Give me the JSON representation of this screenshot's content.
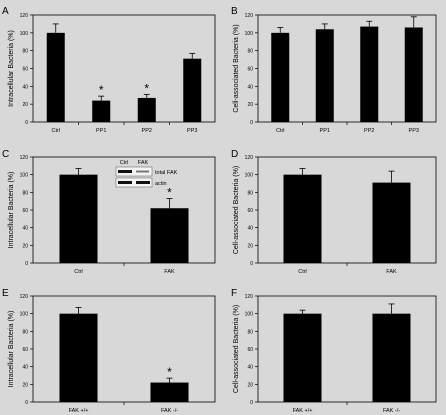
{
  "figure": {
    "background": "#d8d8d8",
    "bar_color": "#000000"
  },
  "chart_data": [
    {
      "type": "bar",
      "panel": "A",
      "categories": [
        "Ctrl",
        "PP1",
        "PP2",
        "PP3"
      ],
      "values": [
        100,
        24,
        27,
        71
      ],
      "errors": [
        10,
        5,
        4,
        6
      ],
      "significant": [
        false,
        true,
        true,
        false
      ],
      "ylabel": "Intracellular Bacteria (%)",
      "ylim": [
        0,
        120
      ],
      "yticks": [
        0,
        20,
        40,
        60,
        80,
        100,
        120
      ]
    },
    {
      "type": "bar",
      "panel": "B",
      "categories": [
        "Ctrl",
        "PP1",
        "PP2",
        "PP3"
      ],
      "values": [
        100,
        104,
        107,
        106
      ],
      "errors": [
        6,
        6,
        6,
        12
      ],
      "significant": [
        false,
        false,
        false,
        false
      ],
      "ylabel": "Cell-associated Bacteria (%)",
      "ylim": [
        0,
        120
      ],
      "yticks": [
        0,
        20,
        40,
        60,
        80,
        100,
        120
      ]
    },
    {
      "type": "bar",
      "panel": "C",
      "categories": [
        "Ctrl",
        "FAK"
      ],
      "values": [
        100,
        62
      ],
      "errors": [
        7,
        11
      ],
      "significant": [
        false,
        true
      ],
      "ylabel": "Intracellular Bacteria (%)",
      "ylim": [
        0,
        120
      ],
      "yticks": [
        0,
        20,
        40,
        60,
        80,
        100,
        120
      ],
      "inset": {
        "lanes": [
          "Ctrl",
          "FAK"
        ],
        "rows": [
          "total FAK",
          "actin"
        ]
      }
    },
    {
      "type": "bar",
      "panel": "D",
      "categories": [
        "Ctrl",
        "FAK"
      ],
      "values": [
        100,
        91
      ],
      "errors": [
        7,
        13
      ],
      "significant": [
        false,
        false
      ],
      "ylabel": "Cell-associated Bacteria (%)",
      "ylim": [
        0,
        120
      ],
      "yticks": [
        0,
        20,
        40,
        60,
        80,
        100,
        120
      ]
    },
    {
      "type": "bar",
      "panel": "E",
      "categories": [
        "FAK +/+",
        "FAK -/-"
      ],
      "values": [
        100,
        22
      ],
      "errors": [
        7,
        5
      ],
      "significant": [
        false,
        true
      ],
      "ylabel": "Intracellular Bacteria (%)",
      "ylim": [
        0,
        120
      ],
      "yticks": [
        0,
        20,
        40,
        60,
        80,
        100,
        120
      ]
    },
    {
      "type": "bar",
      "panel": "F",
      "categories": [
        "FAK +/+",
        "FAK -/-"
      ],
      "values": [
        100,
        100
      ],
      "errors": [
        4,
        11
      ],
      "significant": [
        false,
        false
      ],
      "ylabel": "Cell-associated Bacteria (%)",
      "ylim": [
        0,
        120
      ],
      "yticks": [
        0,
        20,
        40,
        60,
        80,
        100,
        120
      ]
    }
  ]
}
